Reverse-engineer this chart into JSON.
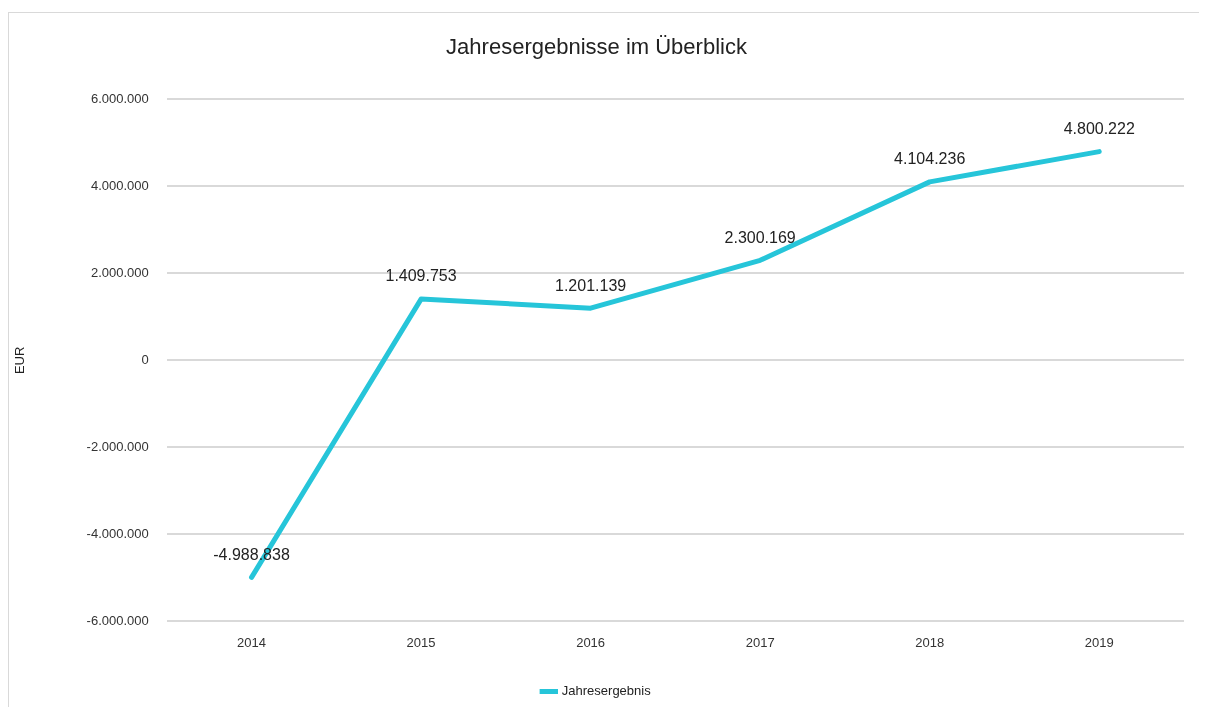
{
  "chart_data": {
    "type": "line",
    "title": "Jahresergebnisse im Überblick",
    "ylabel": "EUR",
    "categories": [
      "2014",
      "2015",
      "2016",
      "2017",
      "2018",
      "2019"
    ],
    "series": [
      {
        "name": "Jahresergebnis",
        "color": "#26c5d9",
        "values": [
          -4988838,
          1409753,
          1201139,
          2300169,
          4104236,
          4800222
        ],
        "value_labels": [
          "-4.988.838",
          "1.409.753",
          "1.201.139",
          "2.300.169",
          "4.104.236",
          "4.800.222"
        ]
      }
    ],
    "ylim": [
      -6000000,
      6000000
    ],
    "yticks": [
      {
        "value": -6000000,
        "label": "-6.000.000"
      },
      {
        "value": -4000000,
        "label": "-4.000.000"
      },
      {
        "value": -2000000,
        "label": "-2.000.000"
      },
      {
        "value": 0,
        "label": "0"
      },
      {
        "value": 2000000,
        "label": "2.000.000"
      },
      {
        "value": 4000000,
        "label": "4.000.000"
      },
      {
        "value": 6000000,
        "label": "6.000.000"
      }
    ],
    "grid": "y",
    "legend": "bottom",
    "marker": "none",
    "line_style": "solid"
  }
}
